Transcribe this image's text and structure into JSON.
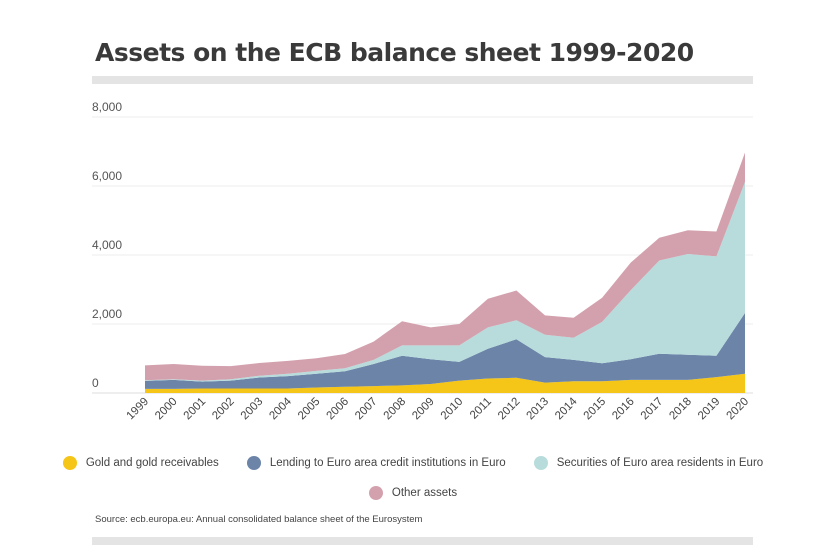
{
  "title": "Assets on the ECB balance sheet 1999-2020",
  "source": "Source: ecb.europa.eu: Annual consolidated balance sheet of the Eurosystem",
  "chart_data": {
    "type": "area",
    "stacked": true,
    "title": "Assets on the ECB balance sheet 1999-2020",
    "xlabel": "",
    "ylabel": "",
    "ylim": [
      0,
      8000
    ],
    "yticks": [
      0,
      2000,
      4000,
      6000,
      8000
    ],
    "ytick_labels": [
      "0",
      "2,000",
      "4,000",
      "6,000",
      "8,000"
    ],
    "grid": true,
    "legend": "bottom",
    "categories": [
      "1999",
      "2000",
      "2001",
      "2002",
      "2003",
      "2004",
      "2005",
      "2006",
      "2007",
      "2008",
      "2009",
      "2010",
      "2011",
      "2012",
      "2013",
      "2014",
      "2015",
      "2016",
      "2017",
      "2018",
      "2019",
      "2020"
    ],
    "series": [
      {
        "name": "Gold and gold receivables",
        "color": "#f5c518",
        "values": [
          120,
          120,
          130,
          130,
          130,
          130,
          160,
          180,
          200,
          220,
          260,
          360,
          420,
          440,
          300,
          340,
          340,
          380,
          380,
          380,
          460,
          560
        ]
      },
      {
        "name": "Lending to Euro area credit institutions in Euro",
        "color": "#6b84a8",
        "values": [
          230,
          260,
          200,
          230,
          320,
          360,
          400,
          450,
          640,
          860,
          720,
          540,
          860,
          1120,
          740,
          620,
          520,
          600,
          760,
          730,
          620,
          1760
        ]
      },
      {
        "name": "Securities of Euro area residents in Euro",
        "color": "#b8dcdc",
        "values": [
          20,
          20,
          30,
          40,
          50,
          70,
          80,
          90,
          120,
          300,
          400,
          480,
          620,
          550,
          650,
          640,
          1200,
          2000,
          2700,
          2920,
          2880,
          3800
        ]
      },
      {
        "name": "Other assets",
        "color": "#d3a1ae",
        "values": [
          430,
          440,
          430,
          380,
          370,
          370,
          370,
          410,
          530,
          700,
          520,
          620,
          830,
          860,
          560,
          580,
          700,
          800,
          660,
          690,
          720,
          850
        ]
      }
    ]
  }
}
